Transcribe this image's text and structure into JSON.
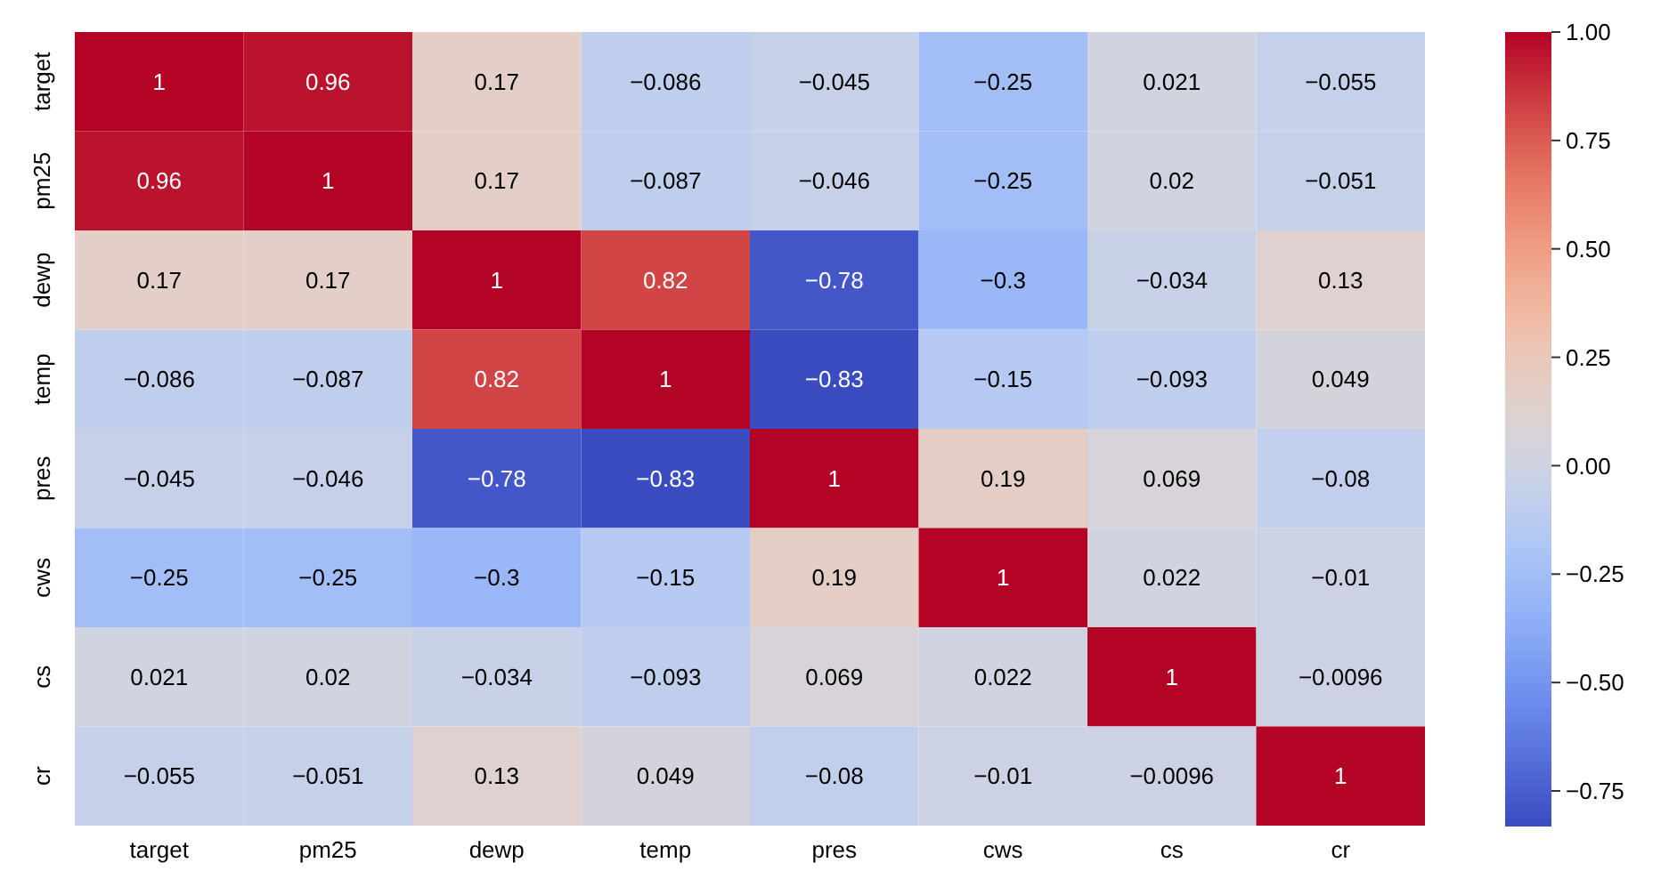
{
  "chart_data": {
    "type": "heatmap",
    "categories": [
      "target",
      "pm25",
      "dewp",
      "temp",
      "pres",
      "cws",
      "cs",
      "cr"
    ],
    "y_categories": [
      "target",
      "pm25",
      "dewp",
      "temp",
      "pres",
      "cws",
      "cs",
      "cr"
    ],
    "cells": [
      [
        1,
        0.96,
        0.17,
        -0.086,
        -0.045,
        -0.25,
        0.021,
        -0.055
      ],
      [
        0.96,
        1,
        0.17,
        -0.087,
        -0.046,
        -0.25,
        0.02,
        -0.051
      ],
      [
        0.17,
        0.17,
        1,
        0.82,
        -0.78,
        -0.3,
        -0.034,
        0.13
      ],
      [
        -0.086,
        -0.087,
        0.82,
        1,
        -0.83,
        -0.15,
        -0.093,
        0.049
      ],
      [
        -0.045,
        -0.046,
        -0.78,
        -0.83,
        1,
        0.19,
        0.069,
        -0.08
      ],
      [
        -0.25,
        -0.25,
        -0.3,
        -0.15,
        0.19,
        1,
        0.022,
        -0.01
      ],
      [
        0.021,
        0.02,
        -0.034,
        -0.093,
        0.069,
        0.022,
        1,
        -0.0096
      ],
      [
        -0.055,
        -0.051,
        0.13,
        0.049,
        -0.08,
        -0.01,
        -0.0096,
        1
      ]
    ],
    "data_labels": true,
    "clim": [
      -0.83,
      1
    ],
    "cticks": [
      {
        "value": -0.75,
        "label": "−0.75"
      },
      {
        "value": -0.5,
        "label": "−0.50"
      },
      {
        "value": -0.25,
        "label": "−0.25"
      },
      {
        "value": 0,
        "label": "0.00"
      },
      {
        "value": 0.25,
        "label": "0.25"
      },
      {
        "value": 0.5,
        "label": "0.50"
      },
      {
        "value": 0.75,
        "label": "0.75"
      },
      {
        "value": 1,
        "label": "1.00"
      }
    ]
  }
}
